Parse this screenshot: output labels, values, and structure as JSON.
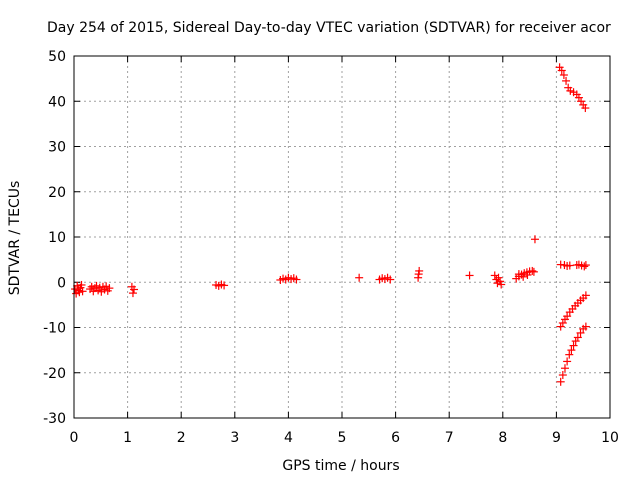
{
  "chart_data": {
    "type": "scatter",
    "title": "Day 254 of 2015, Sidereal Day-to-day VTEC variation (SDTVAR) for receiver acor",
    "xlabel": "GPS time / hours",
    "ylabel": "SDTVAR / TECUs",
    "xlim": [
      0,
      10
    ],
    "ylim": [
      -30,
      50
    ],
    "xticks": [
      "0",
      "1",
      "2",
      "3",
      "4",
      "5",
      "6",
      "7",
      "8",
      "9",
      "10"
    ],
    "yticks": [
      "-30",
      "-20",
      "-10",
      "0",
      "10",
      "20",
      "30",
      "40",
      "50"
    ],
    "grid": true,
    "marker": "+",
    "color": "#ff0000",
    "series": [
      {
        "name": "SDTVAR",
        "points": [
          [
            0.02,
            -1.5
          ],
          [
            0.04,
            -2.5
          ],
          [
            0.06,
            -0.8
          ],
          [
            0.08,
            -1.8
          ],
          [
            0.1,
            -2.2
          ],
          [
            0.12,
            -1.2
          ],
          [
            0.14,
            -0.6
          ],
          [
            0.16,
            -2.0
          ],
          [
            0.3,
            -1.5
          ],
          [
            0.33,
            -1.0
          ],
          [
            0.36,
            -2.0
          ],
          [
            0.39,
            -1.3
          ],
          [
            0.42,
            -0.8
          ],
          [
            0.45,
            -1.8
          ],
          [
            0.48,
            -1.2
          ],
          [
            0.51,
            -2.1
          ],
          [
            0.54,
            -1.0
          ],
          [
            0.57,
            -1.6
          ],
          [
            0.6,
            -0.9
          ],
          [
            0.63,
            -1.9
          ],
          [
            0.66,
            -1.3
          ],
          [
            1.08,
            -1.0
          ],
          [
            1.1,
            -2.4
          ],
          [
            1.12,
            -1.6
          ],
          [
            2.65,
            -0.6
          ],
          [
            2.7,
            -0.8
          ],
          [
            2.75,
            -0.5
          ],
          [
            2.8,
            -0.7
          ],
          [
            3.85,
            0.5
          ],
          [
            3.9,
            0.8
          ],
          [
            3.95,
            0.6
          ],
          [
            4.0,
            1.0
          ],
          [
            4.05,
            0.7
          ],
          [
            4.1,
            0.9
          ],
          [
            4.15,
            0.6
          ],
          [
            5.32,
            1.0
          ],
          [
            5.7,
            0.6
          ],
          [
            5.75,
            0.9
          ],
          [
            5.8,
            0.7
          ],
          [
            5.85,
            1.0
          ],
          [
            5.9,
            0.6
          ],
          [
            6.42,
            1.0
          ],
          [
            6.43,
            1.8
          ],
          [
            6.44,
            2.5
          ],
          [
            7.38,
            1.5
          ],
          [
            7.85,
            1.5
          ],
          [
            7.88,
            0.6
          ],
          [
            7.9,
            -0.2
          ],
          [
            7.92,
            1.0
          ],
          [
            7.95,
            0.2
          ],
          [
            7.97,
            -0.5
          ],
          [
            8.25,
            0.8
          ],
          [
            8.3,
            1.3
          ],
          [
            8.35,
            1.7
          ],
          [
            8.4,
            2.0
          ],
          [
            8.45,
            2.2
          ],
          [
            8.5,
            2.4
          ],
          [
            8.55,
            2.5
          ],
          [
            8.58,
            2.3
          ],
          [
            8.3,
            1.8
          ],
          [
            8.38,
            1.2
          ],
          [
            8.46,
            1.6
          ],
          [
            8.6,
            9.5
          ],
          [
            9.06,
            47.5
          ],
          [
            9.1,
            46.8
          ],
          [
            9.14,
            45.8
          ],
          [
            9.18,
            44.5
          ],
          [
            9.22,
            43.0
          ],
          [
            9.26,
            42.3
          ],
          [
            9.32,
            42.0
          ],
          [
            9.38,
            41.5
          ],
          [
            9.42,
            40.8
          ],
          [
            9.46,
            40.0
          ],
          [
            9.5,
            39.2
          ],
          [
            9.54,
            38.5
          ],
          [
            9.08,
            3.9
          ],
          [
            9.15,
            3.8
          ],
          [
            9.2,
            3.6
          ],
          [
            9.25,
            3.7
          ],
          [
            9.38,
            3.8
          ],
          [
            9.42,
            3.9
          ],
          [
            9.47,
            3.7
          ],
          [
            9.52,
            3.5
          ],
          [
            9.55,
            3.8
          ],
          [
            9.08,
            -9.8
          ],
          [
            9.12,
            -9.0
          ],
          [
            9.16,
            -8.2
          ],
          [
            9.2,
            -7.5
          ],
          [
            9.25,
            -6.6
          ],
          [
            9.3,
            -5.9
          ],
          [
            9.35,
            -5.2
          ],
          [
            9.4,
            -4.6
          ],
          [
            9.45,
            -4.0
          ],
          [
            9.5,
            -3.5
          ],
          [
            9.55,
            -2.9
          ],
          [
            9.08,
            -22.0
          ],
          [
            9.12,
            -20.5
          ],
          [
            9.16,
            -19.0
          ],
          [
            9.2,
            -17.5
          ],
          [
            9.24,
            -16.0
          ],
          [
            9.28,
            -15.0
          ],
          [
            9.32,
            -14.0
          ],
          [
            9.36,
            -13.0
          ],
          [
            9.4,
            -12.2
          ],
          [
            9.45,
            -11.2
          ],
          [
            9.5,
            -10.3
          ],
          [
            9.55,
            -9.8
          ]
        ]
      }
    ]
  }
}
